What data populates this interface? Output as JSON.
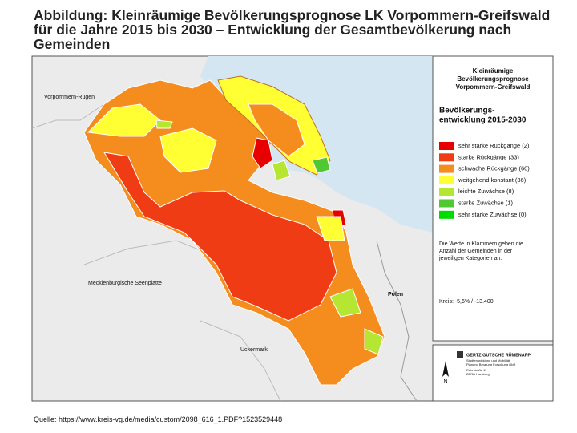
{
  "title": [
    "Abbildung: Kleinräumige Bevölkerungsprognose LK Vorpommern-Greifswald",
    "für die Jahre 2015 bis 2030 – Entwicklung der Gesamtbevölkerung nach",
    "Gemeinden"
  ],
  "map_labels": {
    "north_west": "Vorpommern-Rügen",
    "south_west": "Mecklenburgische Seenplatte",
    "south": "Uckermark",
    "east": "Polen"
  },
  "legend": {
    "title": [
      "Kleinräumige",
      "Bevölkerungsprognose",
      "Vorpommern-Greifswald"
    ],
    "subtitle": [
      "Bevölkerungs-",
      "entwicklung 2015-2030"
    ],
    "items": [
      {
        "label": "sehr starke Rückgänge (2)",
        "color": "#e60000"
      },
      {
        "label": "starke Rückgänge (33)",
        "color": "#f03c14"
      },
      {
        "label": "schwache Rückgänge (60)",
        "color": "#f58c1e"
      },
      {
        "label": "weitgehend konstant (36)",
        "color": "#ffff33"
      },
      {
        "label": "leichte Zuwächse (8)",
        "color": "#b4e632"
      },
      {
        "label": "starke Zuwächse (1)",
        "color": "#50c832"
      },
      {
        "label": "sehr starke Zuwächse (0)",
        "color": "#00dc00"
      }
    ],
    "note": [
      "Die Werte in Klammern geben die",
      "Anzahl der Gemeinden in der",
      "jeweiligen Kategorien an."
    ],
    "total": "Kreis: -5,6% / -13.400"
  },
  "logo": {
    "mark": "N",
    "name": "GERTZ GUTSCHE RÜMENAPP",
    "lines": [
      "Stadtentwicklung und Mobilität",
      "Planung Beratung Forschung GbR",
      "Ruhrstraße 11",
      "22761 Hamburg"
    ]
  },
  "source": "Quelle: https://www.kreis-vg.de/media/custom/2098_616_1.PDF?1523529448"
}
